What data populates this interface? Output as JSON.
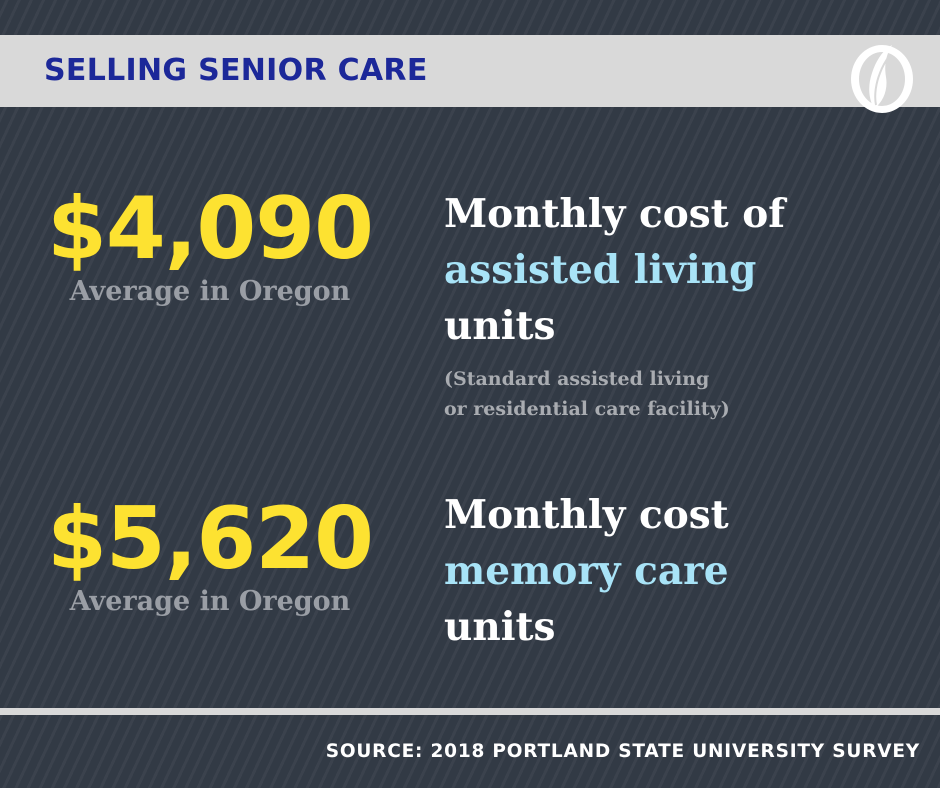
{
  "header": {
    "title": "SELLING SENIOR CARE",
    "logo_icon": "oregonian-o-logo"
  },
  "stats": [
    {
      "value": "$4,090",
      "label": "Average in Oregon",
      "desc_line1": "Monthly cost of",
      "desc_highlight": "assisted living",
      "desc_line3": "units",
      "note_line1": "(Standard assisted living",
      "note_line2": "or residential care facility)"
    },
    {
      "value": "$5,620",
      "label": "Average in Oregon",
      "desc_line1": "Monthly cost",
      "desc_highlight": "memory care",
      "desc_line3": "units"
    }
  ],
  "footer": {
    "source": "SOURCE: 2018 PORTLAND STATE UNIVERSITY SURVEY"
  },
  "colors": {
    "background": "#323a45",
    "header_bar": "#d9d9d9",
    "title": "#1c2899",
    "value": "#fde231",
    "highlight": "#a8e3f7"
  }
}
